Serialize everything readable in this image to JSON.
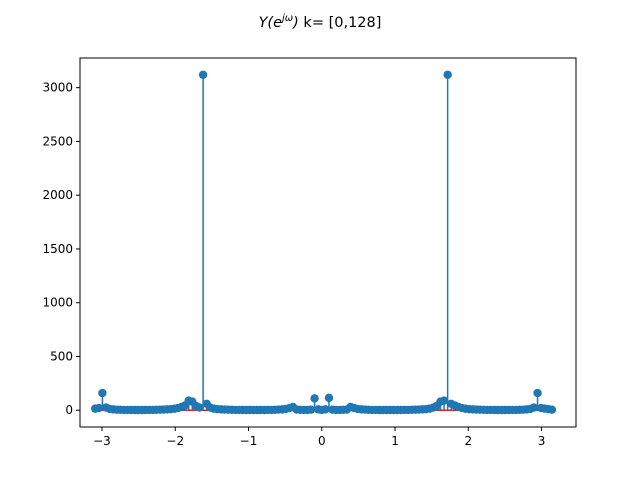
{
  "chart_data": {
    "type": "stem",
    "title_main": "Y(e",
    "title_sup": "jω",
    "title_close": ")",
    "title_rest": " k= [0,128]",
    "xlabel": "",
    "ylabel": "",
    "xlim": [
      -3.3,
      3.47
    ],
    "ylim": [
      -156,
      3276
    ],
    "x_ticks": [
      -3,
      -2,
      -1,
      0,
      1,
      2,
      3
    ],
    "x_tick_labels": [
      "−3",
      "−2",
      "−1",
      "0",
      "1",
      "2",
      "3"
    ],
    "y_ticks": [
      0,
      500,
      1000,
      1500,
      2000,
      2500,
      3000
    ],
    "y_tick_labels": [
      "0",
      "500",
      "1000",
      "1500",
      "2000",
      "2500",
      "3000"
    ],
    "grid": false,
    "legend": "none",
    "colors": {
      "stem": "#1f77b4",
      "marker": "#1f77b4",
      "baseline": "#d62728"
    },
    "series": [
      {
        "x": [
          -3.0925,
          -3.0434,
          -2.9943,
          -2.9452,
          -2.8962,
          -2.8471,
          -2.798,
          -2.7489,
          -2.6998,
          -2.6507,
          -2.6016,
          -2.5525,
          -2.5034,
          -2.4544,
          -2.4053,
          -2.3562,
          -2.3071,
          -2.258,
          -2.2089,
          -2.1598,
          -2.1107,
          -2.0617,
          -2.0126,
          -1.9635,
          -1.9144,
          -1.8653,
          -1.8162,
          -1.7671,
          -1.718,
          -1.669,
          -1.6199,
          -1.5708,
          -1.5217,
          -1.4726,
          -1.4235,
          -1.3744,
          -1.3253,
          -1.2763,
          -1.2272,
          -1.1781,
          -1.129,
          -1.0799,
          -1.0308,
          -0.9817,
          -0.9327,
          -0.8836,
          -0.8345,
          -0.7854,
          -0.7363,
          -0.6872,
          -0.6381,
          -0.589,
          -0.54,
          -0.4909,
          -0.4418,
          -0.3927,
          -0.3436,
          -0.2945,
          -0.2454,
          -0.1963,
          -0.1473,
          -0.0982,
          -0.0491,
          0.0,
          0.0491,
          0.0982,
          0.1473,
          0.1963,
          0.2454,
          0.2945,
          0.3436,
          0.3927,
          0.4418,
          0.4909,
          0.54,
          0.589,
          0.6381,
          0.6872,
          0.7363,
          0.7854,
          0.8345,
          0.8836,
          0.9327,
          0.9817,
          1.0308,
          1.0799,
          1.129,
          1.1781,
          1.2272,
          1.2763,
          1.3253,
          1.3744,
          1.4235,
          1.4726,
          1.5217,
          1.5708,
          1.6199,
          1.669,
          1.718,
          1.7671,
          1.8162,
          1.8653,
          1.9144,
          1.9635,
          2.0126,
          2.0617,
          2.1107,
          2.1598,
          2.2089,
          2.258,
          2.3071,
          2.3562,
          2.4053,
          2.4544,
          2.5034,
          2.5525,
          2.6016,
          2.6507,
          2.6998,
          2.7489,
          2.798,
          2.8471,
          2.8962,
          2.9452,
          2.9943,
          3.0434,
          3.0925,
          3.1416
        ],
        "y": [
          15,
          20,
          160,
          25,
          12,
          8,
          5,
          4,
          3,
          3,
          2,
          2,
          2,
          2,
          2,
          3,
          3,
          4,
          5,
          6,
          8,
          10,
          14,
          20,
          30,
          45,
          90,
          80,
          40,
          25,
          3120,
          60,
          25,
          15,
          10,
          8,
          6,
          5,
          4,
          3,
          3,
          2,
          2,
          2,
          2,
          2,
          2,
          2,
          3,
          3,
          4,
          6,
          8,
          12,
          20,
          30,
          6,
          4,
          3,
          3,
          5,
          110,
          8,
          3,
          8,
          115,
          5,
          3,
          3,
          4,
          6,
          30,
          20,
          12,
          8,
          6,
          4,
          3,
          3,
          2,
          2,
          2,
          2,
          2,
          2,
          2,
          3,
          3,
          4,
          5,
          6,
          8,
          10,
          15,
          25,
          40,
          80,
          90,
          3120,
          60,
          45,
          30,
          20,
          14,
          10,
          8,
          6,
          5,
          4,
          3,
          3,
          2,
          2,
          2,
          2,
          2,
          3,
          3,
          4,
          5,
          8,
          12,
          25,
          160,
          20,
          15,
          10,
          5
        ]
      }
    ]
  }
}
